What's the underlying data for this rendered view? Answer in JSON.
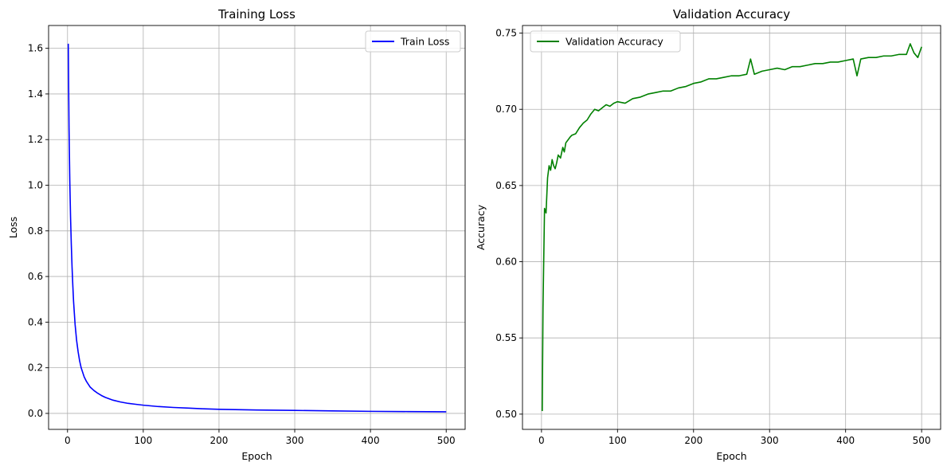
{
  "chart_data": [
    {
      "type": "line",
      "title": "Training Loss",
      "xlabel": "Epoch",
      "ylabel": "Loss",
      "xlim": [
        -25,
        525
      ],
      "ylim": [
        -0.07,
        1.7
      ],
      "xticks": [
        0,
        100,
        200,
        300,
        400,
        500
      ],
      "xtick_labels": [
        "0",
        "100",
        "200",
        "300",
        "400",
        "500"
      ],
      "yticks": [
        0.0,
        0.2,
        0.4,
        0.6,
        0.8,
        1.0,
        1.2,
        1.4,
        1.6
      ],
      "ytick_labels": [
        "0.0",
        "0.2",
        "0.4",
        "0.6",
        "0.8",
        "1.0",
        "1.2",
        "1.4",
        "1.6"
      ],
      "grid": true,
      "legend_position": "top-right",
      "series": [
        {
          "name": "Train Loss",
          "color": "#0000ff",
          "x": [
            1,
            2,
            3,
            4,
            5,
            6,
            7,
            8,
            9,
            10,
            12,
            14,
            16,
            18,
            20,
            22,
            25,
            28,
            30,
            35,
            40,
            45,
            50,
            60,
            70,
            80,
            90,
            100,
            120,
            140,
            160,
            180,
            200,
            250,
            300,
            350,
            400,
            450,
            500
          ],
          "y": [
            1.62,
            1.25,
            1.02,
            0.86,
            0.74,
            0.64,
            0.56,
            0.49,
            0.44,
            0.39,
            0.32,
            0.27,
            0.23,
            0.2,
            0.18,
            0.16,
            0.14,
            0.125,
            0.115,
            0.1,
            0.088,
            0.078,
            0.07,
            0.058,
            0.05,
            0.044,
            0.04,
            0.036,
            0.03,
            0.026,
            0.023,
            0.02,
            0.018,
            0.015,
            0.013,
            0.011,
            0.009,
            0.008,
            0.007
          ]
        }
      ]
    },
    {
      "type": "line",
      "title": "Validation Accuracy",
      "xlabel": "Epoch",
      "ylabel": "Accuracy",
      "xlim": [
        -25,
        525
      ],
      "ylim": [
        0.49,
        0.755
      ],
      "xticks": [
        0,
        100,
        200,
        300,
        400,
        500
      ],
      "xtick_labels": [
        "0",
        "100",
        "200",
        "300",
        "400",
        "500"
      ],
      "yticks": [
        0.5,
        0.55,
        0.6,
        0.65,
        0.7,
        0.75
      ],
      "ytick_labels": [
        "0.50",
        "0.55",
        "0.60",
        "0.65",
        "0.70",
        "0.75"
      ],
      "grid": true,
      "legend_position": "top-left",
      "series": [
        {
          "name": "Validation Accuracy",
          "color": "#008000",
          "x": [
            1,
            2,
            4,
            6,
            8,
            10,
            12,
            14,
            16,
            18,
            20,
            22,
            25,
            28,
            30,
            32,
            35,
            38,
            40,
            45,
            50,
            55,
            60,
            65,
            70,
            75,
            80,
            85,
            90,
            95,
            100,
            110,
            120,
            130,
            140,
            150,
            160,
            170,
            180,
            190,
            200,
            210,
            220,
            230,
            240,
            250,
            260,
            270,
            275,
            280,
            290,
            300,
            310,
            320,
            330,
            340,
            350,
            360,
            370,
            380,
            390,
            400,
            410,
            415,
            420,
            430,
            440,
            450,
            460,
            470,
            480,
            485,
            490,
            495,
            500
          ],
          "y": [
            0.502,
            0.57,
            0.635,
            0.632,
            0.655,
            0.663,
            0.66,
            0.667,
            0.663,
            0.661,
            0.665,
            0.67,
            0.668,
            0.675,
            0.672,
            0.678,
            0.68,
            0.682,
            0.683,
            0.684,
            0.688,
            0.691,
            0.693,
            0.697,
            0.7,
            0.699,
            0.701,
            0.703,
            0.702,
            0.704,
            0.705,
            0.704,
            0.707,
            0.708,
            0.71,
            0.711,
            0.712,
            0.712,
            0.714,
            0.715,
            0.717,
            0.718,
            0.72,
            0.72,
            0.721,
            0.722,
            0.722,
            0.723,
            0.733,
            0.723,
            0.725,
            0.726,
            0.727,
            0.726,
            0.728,
            0.728,
            0.729,
            0.73,
            0.73,
            0.731,
            0.731,
            0.732,
            0.733,
            0.722,
            0.733,
            0.734,
            0.734,
            0.735,
            0.735,
            0.736,
            0.736,
            0.743,
            0.737,
            0.734,
            0.741
          ]
        }
      ]
    }
  ]
}
